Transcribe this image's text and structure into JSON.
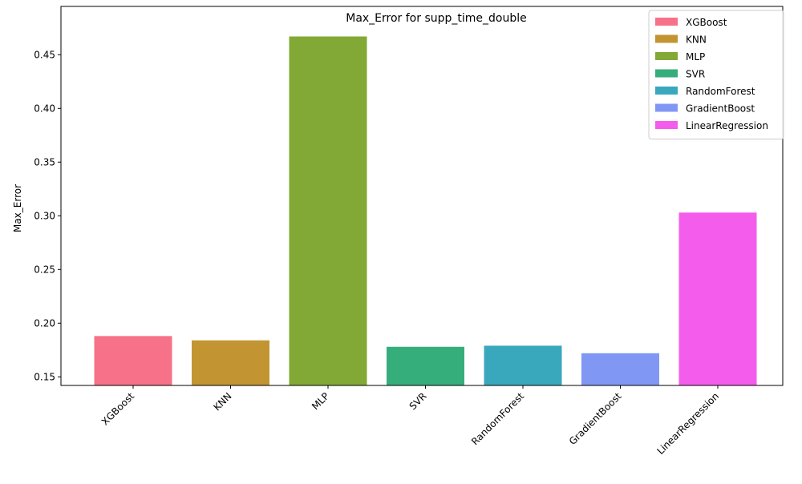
{
  "chart_data": {
    "type": "bar",
    "title": "Max_Error for supp_time_double",
    "xlabel": "",
    "ylabel": "Max_Error",
    "categories": [
      "XGBoost",
      "KNN",
      "MLP",
      "SVR",
      "RandomForest",
      "GradientBoost",
      "LinearRegression"
    ],
    "values": [
      0.188,
      0.184,
      0.467,
      0.178,
      0.179,
      0.172,
      0.303
    ],
    "colors": [
      "#f77189",
      "#c39532",
      "#82a935",
      "#36ae7c",
      "#39a8bd",
      "#8197f4",
      "#f45deb"
    ],
    "ylim": [
      0.142,
      0.495
    ],
    "yticks": [
      0.15,
      0.2,
      0.25,
      0.3,
      0.35,
      0.4,
      0.45
    ],
    "ytick_labels": [
      "0.15",
      "0.20",
      "0.25",
      "0.30",
      "0.35",
      "0.40",
      "0.45"
    ],
    "grid": false,
    "legend": {
      "placement": "top-right",
      "entries": [
        "XGBoost",
        "KNN",
        "MLP",
        "SVR",
        "RandomForest",
        "GradientBoost",
        "LinearRegression"
      ]
    }
  }
}
